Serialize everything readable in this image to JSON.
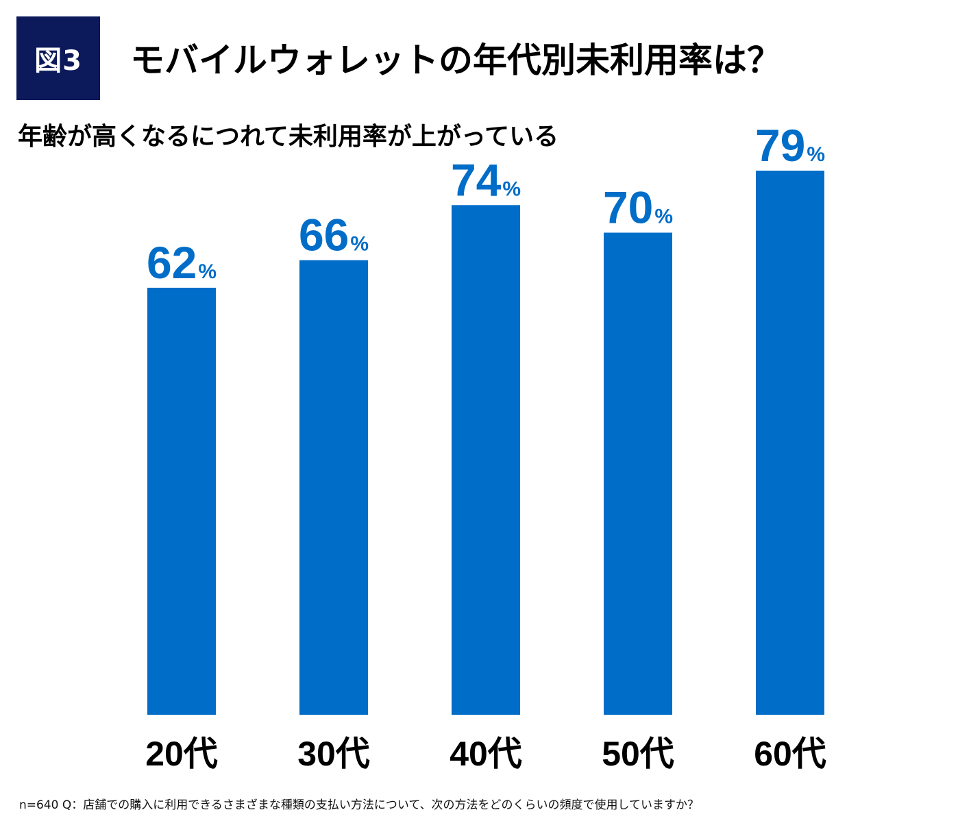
{
  "figure_label": "図3",
  "title": "モバイルウォレットの年代別未利用率は？",
  "subtitle": "年齢が高くなるにつれて未利用率が上がっている",
  "footnote": "n=640 Q：店舗での購入に利用できるさまざまな種類の支払い方法について、次の方法をどのくらいの頻度で使用していますか？",
  "colors": {
    "bar": "#006dc8",
    "value_text": "#006dc8",
    "badge": "#0c1a5b"
  },
  "chart_data": {
    "type": "bar",
    "title": "モバイルウォレットの年代別未利用率は？",
    "subtitle": "年齢が高くなるにつれて未利用率が上がっている",
    "categories": [
      "20代",
      "30代",
      "40代",
      "50代",
      "60代"
    ],
    "values": [
      62,
      66,
      74,
      70,
      79
    ],
    "value_labels": [
      "62",
      "66",
      "74",
      "70",
      "79"
    ],
    "value_suffix": "%",
    "xlabel": "",
    "ylabel": "",
    "ylim": [
      0,
      100
    ],
    "grid": false,
    "legend": "none"
  }
}
